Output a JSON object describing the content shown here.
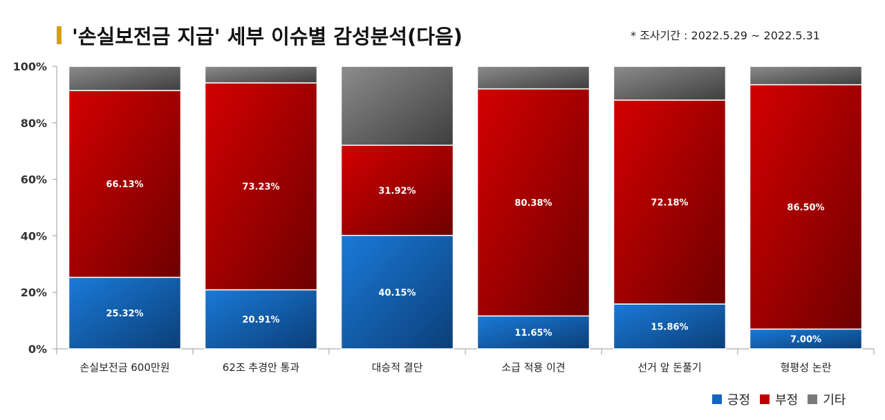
{
  "header": {
    "title": "'손실보전금 지급' 세부 이슈별 감성분석(다음)",
    "survey_period": "* 조사기간 : 2022.5.29 ~ 2022.5.31"
  },
  "chart_data": {
    "type": "bar",
    "stacked": true,
    "percent": true,
    "categories": [
      "손실보전금 600만원",
      "62조 추경안 통과",
      "대승적 결단",
      "소급 적용 이견",
      "선거 앞 돈풀기",
      "형평성 논란"
    ],
    "series": [
      {
        "name": "긍정",
        "color": "#1565c0",
        "values": [
          25.32,
          20.91,
          40.15,
          11.65,
          15.86,
          7.0
        ],
        "labels": [
          "25.32%",
          "20.91%",
          "40.15%",
          "11.65%",
          "15.86%",
          "7.00%"
        ]
      },
      {
        "name": "부정",
        "color": "#b00000",
        "values": [
          66.13,
          73.23,
          31.92,
          80.38,
          72.18,
          86.5
        ],
        "labels": [
          "66.13%",
          "73.23%",
          "31.92%",
          "80.38%",
          "72.18%",
          "86.50%"
        ]
      },
      {
        "name": "기타",
        "color": "#707070",
        "values": [
          8.55,
          5.86,
          27.93,
          7.97,
          11.96,
          6.5
        ]
      }
    ],
    "ylim": [
      0,
      100
    ],
    "yticks": [
      0,
      20,
      40,
      60,
      80,
      100
    ],
    "ytick_labels": [
      "0%",
      "20%",
      "40%",
      "60%",
      "80%",
      "100%"
    ],
    "grid": false,
    "legend_position": "bottom-right"
  }
}
